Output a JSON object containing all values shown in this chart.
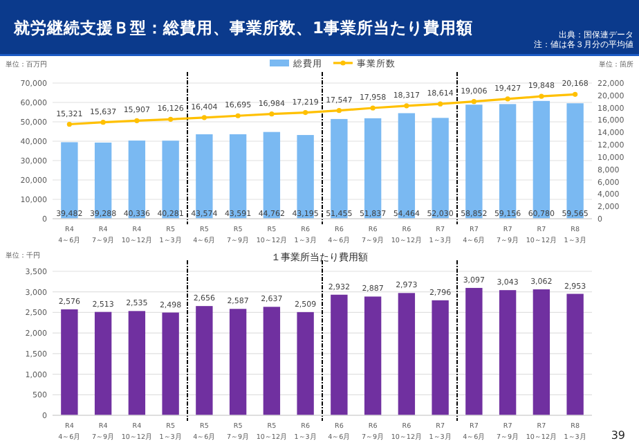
{
  "chart_data": [
    {
      "type": "bar",
      "title": "就労継続支援Ｂ型：総費用、事業所数、1事業所当たり費用額",
      "annotations": [
        "出典：国保連データ",
        "注：値は各３月分の平均値"
      ],
      "ylabel": "単位：百万円",
      "y2label": "単位：箇所",
      "categories": [
        "R4\n4～6月",
        "R4\n7～9月",
        "R4\n10～12月",
        "R5\n1～3月",
        "R5\n4～6月",
        "R5\n7～9月",
        "R5\n10～12月",
        "R6\n1～3月",
        "R6\n4～6月",
        "R6\n7～9月",
        "R6\n10～12月",
        "R7\n1～3月",
        "R7\n4～6月",
        "R7\n7～9月",
        "R7\n10～12月",
        "R8\n1～3月"
      ],
      "series": [
        {
          "name": "総費用",
          "color": "#7ab9f2",
          "values": [
            39482,
            39288,
            40336,
            40281,
            43574,
            43591,
            44762,
            43195,
            51455,
            51837,
            54464,
            52030,
            58852,
            59156,
            60780,
            59565
          ],
          "value_labels": [
            "39,482",
            "39,288",
            "40,336",
            "40,281",
            "43,574",
            "43,591",
            "44,762",
            "43,195",
            "51,455",
            "51,837",
            "54,464",
            "52,030",
            "58,852",
            "59,156",
            "60,780",
            "59,565"
          ]
        },
        {
          "name": "事業所数",
          "type": "line",
          "axis": "y2",
          "color": "#ffc000",
          "values": [
            15321,
            15637,
            15907,
            16126,
            16404,
            16695,
            16984,
            17219,
            17547,
            17958,
            18317,
            18614,
            19006,
            19427,
            19848,
            20168
          ],
          "value_labels": [
            "15,321",
            "15,637",
            "15,907",
            "16,126",
            "16,404",
            "16,695",
            "16,984",
            "17,219",
            "17,547",
            "17,958",
            "18,317",
            "18,614",
            "19,006",
            "19,427",
            "19,848",
            "20,168"
          ]
        }
      ],
      "ylim": [
        0,
        70000
      ],
      "yticks": [
        {
          "value": 0,
          "label": "0"
        },
        {
          "value": 10000,
          "label": "10,000"
        },
        {
          "value": 20000,
          "label": "20,000"
        },
        {
          "value": 30000,
          "label": "30,000"
        },
        {
          "value": 40000,
          "label": "40,000"
        },
        {
          "value": 50000,
          "label": "50,000"
        },
        {
          "value": 60000,
          "label": "60,000"
        },
        {
          "value": 70000,
          "label": "70,000"
        }
      ],
      "y2lim": [
        0,
        22000
      ],
      "y2ticks": [
        {
          "value": 0,
          "label": "0"
        },
        {
          "value": 2000,
          "label": "2,000"
        },
        {
          "value": 4000,
          "label": "4,000"
        },
        {
          "value": 6000,
          "label": "6,000"
        },
        {
          "value": 8000,
          "label": "8,000"
        },
        {
          "value": 10000,
          "label": "10,000"
        },
        {
          "value": 12000,
          "label": "12,000"
        },
        {
          "value": 14000,
          "label": "14,000"
        },
        {
          "value": 16000,
          "label": "16,000"
        },
        {
          "value": 18000,
          "label": "18,000"
        },
        {
          "value": 20000,
          "label": "20,000"
        },
        {
          "value": 22000,
          "label": "22,000"
        }
      ],
      "grid": "y",
      "legend": "top",
      "marker": "circle"
    },
    {
      "type": "bar",
      "title": "１事業所当たり費用額",
      "ylabel": "単位：千円",
      "annotations": [
        "39"
      ],
      "categories": [
        "R4\n4～6月",
        "R4\n7～9月",
        "R4\n10～12月",
        "R5\n1～3月",
        "R5\n4～6月",
        "R5\n7～9月",
        "R5\n10～12月",
        "R6\n1～3月",
        "R6\n4～6月",
        "R6\n7～9月",
        "R6\n10～12月",
        "R7\n1～3月",
        "R7\n4～6月",
        "R7\n7～9月",
        "R7\n10～12月",
        "R8\n1～3月"
      ],
      "values": [
        2576,
        2513,
        2535,
        2498,
        2656,
        2587,
        2637,
        2509,
        2932,
        2887,
        2973,
        2796,
        3097,
        3043,
        3062,
        2953
      ],
      "color": "#7030a0",
      "value_labels": [
        "2,576",
        "2,513",
        "2,535",
        "2,498",
        "2,656",
        "2,587",
        "2,637",
        "2,509",
        "2,932",
        "2,887",
        "2,973",
        "2,796",
        "3,097",
        "3,043",
        "3,062",
        "2,953"
      ],
      "ylim": [
        0,
        3500
      ],
      "yticks": [
        {
          "value": 0,
          "label": "0"
        },
        500,
        {
          "value": 1000,
          "label": "1,000"
        },
        {
          "value": 1500,
          "label": "1,500"
        },
        {
          "value": 2000,
          "label": "2,000"
        },
        {
          "value": 2500,
          "label": "2,500"
        },
        {
          "value": 3000,
          "label": "3,000"
        },
        {
          "value": 3500,
          "label": "3,500"
        }
      ],
      "grid": "y"
    }
  ]
}
